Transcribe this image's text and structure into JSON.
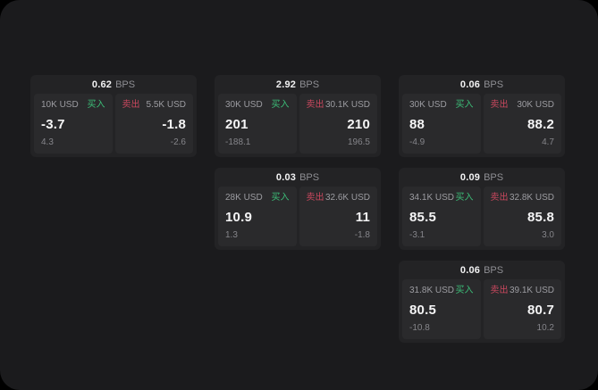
{
  "labels": {
    "buy": "买入",
    "sell": "卖出",
    "bps_unit": "BPS"
  },
  "colors": {
    "window_bg": "#1b1b1d",
    "card_bg": "#232325",
    "panel_bg": "#2a2a2c",
    "buy_green": "#3cbe78",
    "sell_red": "#c9485e",
    "muted_text": "#9c9ca1",
    "value_text": "#f5f5f6"
  },
  "cards": [
    {
      "bps": "0.62",
      "grid": {
        "row": 1,
        "col": 1
      },
      "buy": {
        "size": "10K USD",
        "value": "-3.7",
        "delta": "4.3"
      },
      "sell": {
        "size": "5.5K USD",
        "value": "-1.8",
        "delta": "-2.6"
      }
    },
    {
      "bps": "2.92",
      "grid": {
        "row": 1,
        "col": 2
      },
      "buy": {
        "size": "30K USD",
        "value": "201",
        "delta": "-188.1"
      },
      "sell": {
        "size": "30.1K USD",
        "value": "210",
        "delta": "196.5"
      }
    },
    {
      "bps": "0.06",
      "grid": {
        "row": 1,
        "col": 3
      },
      "buy": {
        "size": "30K USD",
        "value": "88",
        "delta": "-4.9"
      },
      "sell": {
        "size": "30K USD",
        "value": "88.2",
        "delta": "4.7"
      }
    },
    {
      "bps": "0.03",
      "grid": {
        "row": 2,
        "col": 2
      },
      "buy": {
        "size": "28K USD",
        "value": "10.9",
        "delta": "1.3"
      },
      "sell": {
        "size": "32.6K USD",
        "value": "11",
        "delta": "-1.8"
      }
    },
    {
      "bps": "0.09",
      "grid": {
        "row": 2,
        "col": 3
      },
      "buy": {
        "size": "34.1K USD",
        "value": "85.5",
        "delta": "-3.1"
      },
      "sell": {
        "size": "32.8K USD",
        "value": "85.8",
        "delta": "3.0"
      }
    },
    {
      "bps": "0.06",
      "grid": {
        "row": 3,
        "col": 3
      },
      "buy": {
        "size": "31.8K USD",
        "value": "80.5",
        "delta": "-10.8"
      },
      "sell": {
        "size": "39.1K USD",
        "value": "80.7",
        "delta": "10.2"
      }
    }
  ]
}
